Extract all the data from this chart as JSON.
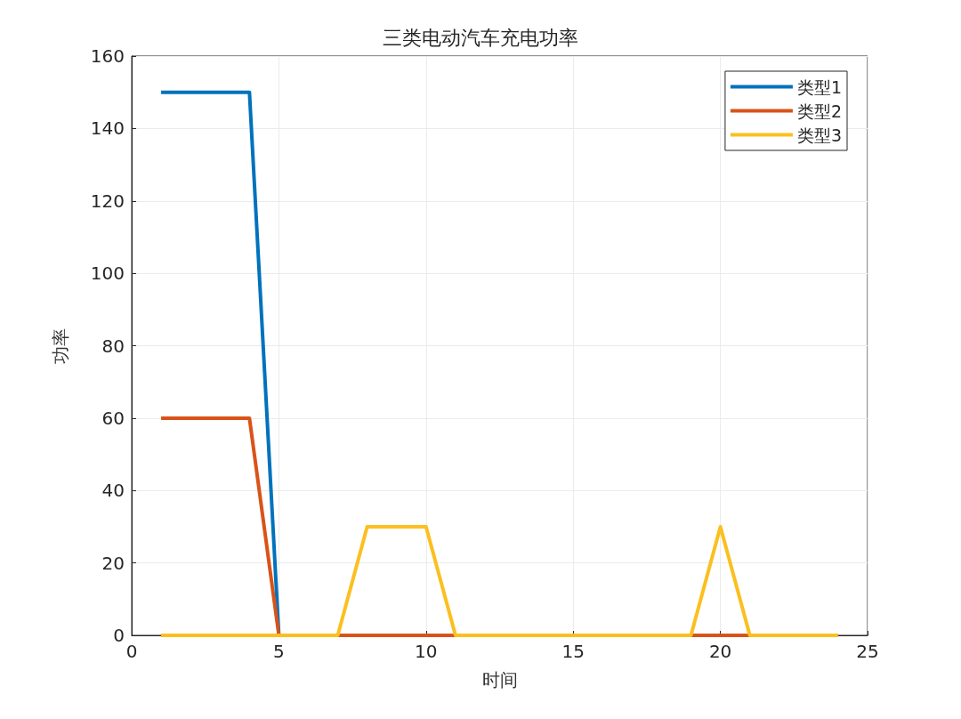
{
  "chart_data": {
    "type": "line",
    "title": "三类电动汽车充电功率",
    "xlabel": "时间",
    "ylabel": "功率",
    "x": [
      1,
      2,
      3,
      4,
      5,
      6,
      7,
      8,
      9,
      10,
      11,
      12,
      13,
      14,
      15,
      16,
      17,
      18,
      19,
      20,
      21,
      22,
      23,
      24
    ],
    "series": [
      {
        "name": "类型1",
        "color": "#0072bd",
        "values": [
          150,
          150,
          150,
          150,
          0,
          null,
          null,
          null,
          null,
          null,
          null,
          null,
          null,
          null,
          null,
          null,
          null,
          null,
          null,
          null,
          null,
          null,
          null,
          null
        ]
      },
      {
        "name": "类型2",
        "color": "#d95319",
        "values": [
          60,
          60,
          60,
          60,
          0,
          0,
          0,
          0,
          0,
          0,
          0,
          0,
          0,
          0,
          0,
          0,
          0,
          0,
          0,
          0,
          0,
          0,
          null,
          null
        ]
      },
      {
        "name": "类型3",
        "color": "#fbbf1f",
        "values": [
          0,
          0,
          0,
          0,
          0,
          0,
          0,
          30,
          30,
          30,
          0,
          0,
          0,
          0,
          0,
          0,
          0,
          0,
          0,
          30,
          0,
          0,
          0,
          0
        ]
      }
    ],
    "xlim": [
      0,
      25
    ],
    "xticks": [
      0,
      5,
      10,
      15,
      20,
      25
    ],
    "ylim": [
      0,
      160
    ],
    "yticks": [
      0,
      20,
      40,
      60,
      80,
      100,
      120,
      140,
      160
    ],
    "grid": true,
    "legend": "top right",
    "marker": "none"
  }
}
